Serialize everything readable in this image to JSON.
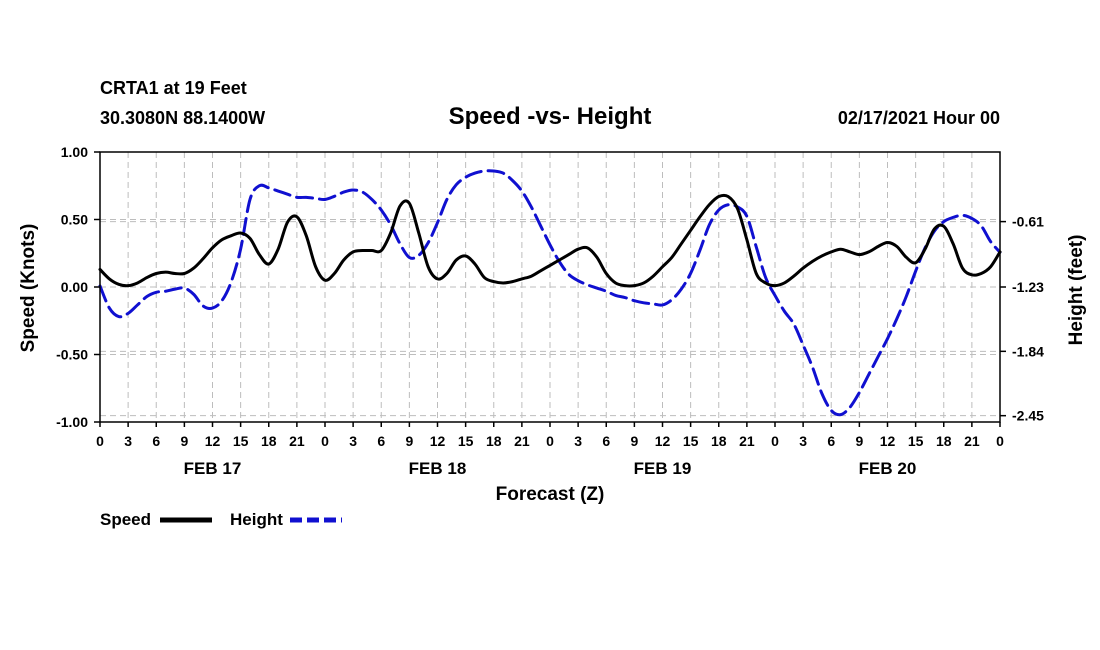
{
  "header": {
    "station_line": "CRTA1 at 19 Feet",
    "coords_line": "30.3080N 88.1400W",
    "title": "Speed -vs- Height",
    "date_line": "02/17/2021 Hour 00"
  },
  "legend": {
    "speed_label": "Speed",
    "height_label": "Height"
  },
  "colors": {
    "speed": "#000000",
    "height": "#1010d0",
    "grid": "#bdbdbd"
  },
  "chart_data": {
    "type": "line",
    "title": "Speed -vs- Height",
    "xlabel": "Forecast (Z)",
    "ylabel": "Speed (Knots)",
    "y2label": "Height (feet)",
    "xlim": [
      0,
      96
    ],
    "ylim": [
      -1.0,
      1.0
    ],
    "y2lim": [
      -2.51,
      0.05
    ],
    "grid": true,
    "x_ticks": [
      0,
      3,
      6,
      9,
      12,
      15,
      18,
      21,
      24,
      27,
      30,
      33,
      36,
      39,
      42,
      45,
      48,
      51,
      54,
      57,
      60,
      63,
      66,
      69,
      72,
      75,
      78,
      81,
      84,
      87,
      90,
      93,
      96
    ],
    "x_tick_labels": [
      "0",
      "3",
      "6",
      "9",
      "12",
      "15",
      "18",
      "21",
      "0",
      "3",
      "6",
      "9",
      "12",
      "15",
      "18",
      "21",
      "0",
      "3",
      "6",
      "9",
      "12",
      "15",
      "18",
      "21",
      "0",
      "3",
      "6",
      "9",
      "12",
      "15",
      "18",
      "21",
      "0"
    ],
    "day_labels": [
      {
        "x": 12,
        "label": "FEB 17"
      },
      {
        "x": 36,
        "label": "FEB 18"
      },
      {
        "x": 60,
        "label": "FEB 19"
      },
      {
        "x": 84,
        "label": "FEB 20"
      }
    ],
    "y_ticks": [
      1.0,
      0.5,
      0.0,
      -0.5,
      -1.0
    ],
    "y_tick_labels": [
      "1.00",
      "0.50",
      "0.00",
      "-0.50",
      "-1.00"
    ],
    "y2_ticks": [
      -0.61,
      -1.23,
      -1.84,
      -2.45
    ],
    "y2_tick_labels": [
      "-0.61",
      "-1.23",
      "-1.84",
      "-2.45"
    ],
    "series": [
      {
        "name": "Speed",
        "axis": "left",
        "style": "solid",
        "x": [
          0,
          1,
          2,
          3,
          4,
          5,
          6,
          7,
          8,
          9,
          10,
          11,
          12,
          13,
          14,
          15,
          16,
          17,
          18,
          19,
          20,
          21,
          22,
          23,
          24,
          25,
          26,
          27,
          28,
          29,
          30,
          31,
          32,
          33,
          34,
          35,
          36,
          37,
          38,
          39,
          40,
          41,
          42,
          43,
          44,
          45,
          46,
          47,
          48,
          49,
          50,
          51,
          52,
          53,
          54,
          55,
          56,
          57,
          58,
          59,
          60,
          61,
          62,
          63,
          64,
          65,
          66,
          67,
          68,
          69,
          70,
          71,
          72,
          73,
          74,
          75,
          76,
          77,
          78,
          79,
          80,
          81,
          82,
          83,
          84,
          85,
          86,
          87,
          88,
          89,
          90,
          91,
          92,
          93,
          94,
          95,
          96
        ],
        "values": [
          0.13,
          0.06,
          0.02,
          0.01,
          0.03,
          0.07,
          0.1,
          0.11,
          0.1,
          0.1,
          0.14,
          0.21,
          0.29,
          0.35,
          0.38,
          0.4,
          0.36,
          0.24,
          0.17,
          0.28,
          0.48,
          0.52,
          0.38,
          0.15,
          0.05,
          0.1,
          0.2,
          0.26,
          0.27,
          0.27,
          0.27,
          0.4,
          0.6,
          0.62,
          0.4,
          0.15,
          0.06,
          0.1,
          0.2,
          0.23,
          0.17,
          0.07,
          0.04,
          0.03,
          0.04,
          0.06,
          0.08,
          0.12,
          0.16,
          0.2,
          0.24,
          0.28,
          0.29,
          0.22,
          0.1,
          0.03,
          0.01,
          0.01,
          0.03,
          0.08,
          0.15,
          0.22,
          0.32,
          0.42,
          0.52,
          0.61,
          0.67,
          0.67,
          0.58,
          0.35,
          0.1,
          0.03,
          0.01,
          0.03,
          0.08,
          0.14,
          0.19,
          0.23,
          0.26,
          0.28,
          0.26,
          0.24,
          0.26,
          0.3,
          0.33,
          0.3,
          0.22,
          0.18,
          0.28,
          0.43,
          0.45,
          0.32,
          0.14,
          0.09,
          0.1,
          0.15,
          0.26
        ]
      },
      {
        "name": "Height",
        "axis": "right",
        "style": "dashed",
        "x": [
          0,
          1,
          2,
          3,
          4,
          5,
          6,
          7,
          8,
          9,
          10,
          11,
          12,
          13,
          14,
          15,
          16,
          17,
          18,
          19,
          20,
          21,
          22,
          23,
          24,
          25,
          26,
          27,
          28,
          29,
          30,
          31,
          32,
          33,
          34,
          35,
          36,
          37,
          38,
          39,
          40,
          41,
          42,
          43,
          44,
          45,
          46,
          47,
          48,
          49,
          50,
          51,
          52,
          53,
          54,
          55,
          56,
          57,
          58,
          59,
          60,
          61,
          62,
          63,
          64,
          65,
          66,
          67,
          68,
          69,
          70,
          71,
          72,
          73,
          74,
          75,
          76,
          77,
          78,
          79,
          80,
          81,
          82,
          83,
          84,
          85,
          86,
          87,
          88,
          89,
          90,
          91,
          92,
          93,
          94,
          95,
          96
        ],
        "values": [
          -1.22,
          -1.43,
          -1.51,
          -1.48,
          -1.4,
          -1.32,
          -1.28,
          -1.27,
          -1.25,
          -1.24,
          -1.3,
          -1.41,
          -1.43,
          -1.36,
          -1.18,
          -0.87,
          -0.4,
          -0.27,
          -0.29,
          -0.32,
          -0.35,
          -0.38,
          -0.38,
          -0.39,
          -0.4,
          -0.37,
          -0.33,
          -0.31,
          -0.33,
          -0.4,
          -0.5,
          -0.64,
          -0.82,
          -0.95,
          -0.93,
          -0.81,
          -0.62,
          -0.4,
          -0.26,
          -0.19,
          -0.15,
          -0.13,
          -0.13,
          -0.15,
          -0.22,
          -0.32,
          -0.47,
          -0.65,
          -0.83,
          -0.99,
          -1.11,
          -1.17,
          -1.21,
          -1.24,
          -1.27,
          -1.31,
          -1.33,
          -1.36,
          -1.38,
          -1.39,
          -1.4,
          -1.35,
          -1.25,
          -1.1,
          -0.88,
          -0.64,
          -0.5,
          -0.45,
          -0.47,
          -0.56,
          -0.85,
          -1.14,
          -1.31,
          -1.46,
          -1.58,
          -1.78,
          -1.99,
          -2.24,
          -2.4,
          -2.44,
          -2.37,
          -2.23,
          -2.06,
          -1.89,
          -1.72,
          -1.53,
          -1.32,
          -1.08,
          -0.86,
          -0.7,
          -0.61,
          -0.57,
          -0.55,
          -0.58,
          -0.65,
          -0.8,
          -0.9
        ]
      }
    ]
  }
}
